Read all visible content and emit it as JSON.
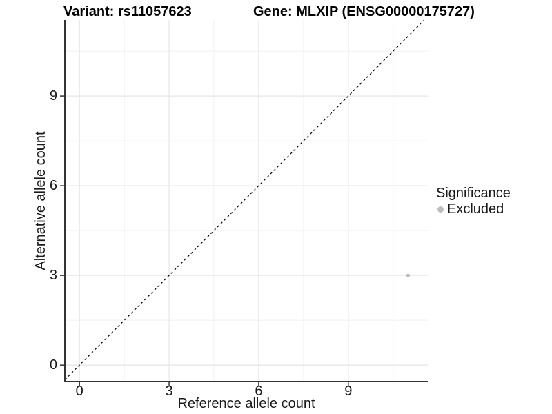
{
  "chart_data": {
    "type": "scatter",
    "titles": [
      "Variant: rs11057623",
      "Gene: MLXIP (ENSG00000175727)"
    ],
    "xlabel": "Reference allele count",
    "ylabel": "Alternative allele count",
    "x_ticks": [
      0,
      3,
      6,
      9
    ],
    "y_ticks": [
      0,
      3,
      6,
      9
    ],
    "x_minor_gridlines": [
      1.5,
      4.5,
      7.5,
      10.5
    ],
    "y_minor_gridlines": [
      1.5,
      4.5,
      7.5,
      10.5
    ],
    "xlim": [
      -0.49,
      11.66
    ],
    "ylim": [
      -0.55,
      11.54
    ],
    "grid": true,
    "points": [
      {
        "x": 11,
        "y": 3,
        "series": "Excluded",
        "color": "#bdbdbd"
      }
    ],
    "reference_line": {
      "type": "identity",
      "slope": 1,
      "intercept": 0,
      "style": "dashed",
      "color": "#000000"
    },
    "legend_position": "right",
    "legend": {
      "title": "Significance",
      "items": [
        {
          "label": "Excluded",
          "color": "#bdbdbd"
        }
      ]
    },
    "colors": {
      "background": "#ffffff",
      "grid_major": "#e6e6e6",
      "grid_minor": "#f1f1f1",
      "axis_line": "#333333",
      "tick_mark": "#333333",
      "tick_text": "#1a1a1a",
      "point": "#bdbdbd",
      "dashed_line": "#000000"
    }
  }
}
